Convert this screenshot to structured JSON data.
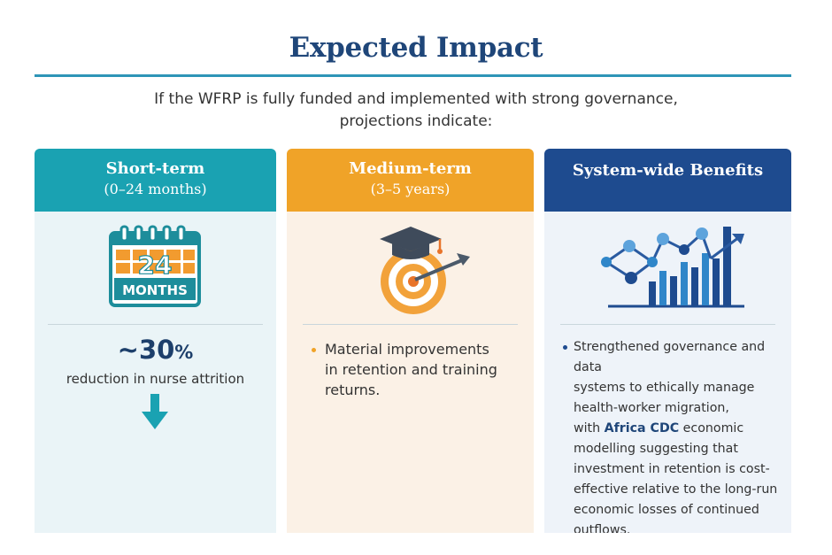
{
  "title": "Expected Impact",
  "intro": {
    "line1": "If the WFRP is fully funded and implemented with strong governance,",
    "line2": "projections indicate:"
  },
  "cards": [
    {
      "title": "Short-term",
      "subtitle": "(0–24 months)",
      "icon": "calendar-icon",
      "calendar_number": "24",
      "calendar_label": "MONTHS",
      "stat_value": "~30",
      "stat_unit": "%",
      "stat_label": "reduction in nurse attrition",
      "arrow_icon": "arrow-down-icon"
    },
    {
      "title": "Medium-term",
      "subtitle": "(3–5 years)",
      "icon": "graduation-target-icon",
      "bullet_lines": [
        "Material improvements",
        "in retention and training",
        "returns."
      ]
    },
    {
      "title": "System-wide Benefits",
      "icon": "network-growth-chart-icon",
      "lines": [
        "Strengthened governance and data",
        "systems to ethically manage",
        "health-worker migration,"
      ],
      "highlight_prefix": "with ",
      "highlight": "Africa CDC",
      "highlight_suffix": " economic",
      "lines_after": [
        "modelling suggesting that",
        "investment in retention is cost-",
        "effective relative to the long-run",
        "economic losses of continued",
        "outflows."
      ]
    }
  ],
  "colors": {
    "teal": "#1aa2b2",
    "orange": "#f0a328",
    "navy": "#1e4b8f"
  }
}
